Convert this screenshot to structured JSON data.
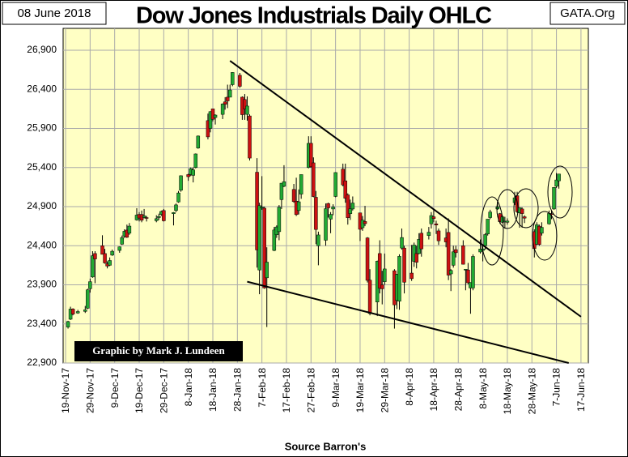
{
  "chart_data": {
    "type": "candlestick",
    "title": "Dow Jones Industrials Daily OHLC",
    "date_label": "08 June 2018",
    "site_label": "GATA.Org",
    "source": "Source Barron's",
    "annotation": "Graphic by Mark J. Lundeen",
    "up_color": "#22aa33",
    "down_color": "#cc1111",
    "background": "#ffffc4",
    "grid": true,
    "xlim": [
      "2017-11-18",
      "2018-06-20"
    ],
    "ylim": [
      22900,
      27180
    ],
    "yticks": [
      {
        "value": 22900,
        "label": "22,900"
      },
      {
        "value": 23400,
        "label": "23,400"
      },
      {
        "value": 23900,
        "label": "23,900"
      },
      {
        "value": 24400,
        "label": "24,400"
      },
      {
        "value": 24900,
        "label": "24,900"
      },
      {
        "value": 25400,
        "label": "25,400"
      },
      {
        "value": 25900,
        "label": "25,900"
      },
      {
        "value": 26400,
        "label": "26,400"
      },
      {
        "value": 26900,
        "label": "26,900"
      }
    ],
    "xticks": [
      {
        "value": "2017-11-19",
        "label": "19-Nov-17"
      },
      {
        "value": "2017-11-29",
        "label": "29-Nov-17"
      },
      {
        "value": "2017-12-09",
        "label": "9-Dec-17"
      },
      {
        "value": "2017-12-19",
        "label": "19-Dec-17"
      },
      {
        "value": "2017-12-29",
        "label": "29-Dec-17"
      },
      {
        "value": "2018-01-08",
        "label": "8-Jan-18"
      },
      {
        "value": "2018-01-18",
        "label": "18-Jan-18"
      },
      {
        "value": "2018-01-28",
        "label": "28-Jan-18"
      },
      {
        "value": "2018-02-07",
        "label": "7-Feb-18"
      },
      {
        "value": "2018-02-17",
        "label": "17-Feb-18"
      },
      {
        "value": "2018-02-27",
        "label": "27-Feb-18"
      },
      {
        "value": "2018-03-09",
        "label": "9-Mar-18"
      },
      {
        "value": "2018-03-19",
        "label": "19-Mar-18"
      },
      {
        "value": "2018-03-29",
        "label": "29-Mar-18"
      },
      {
        "value": "2018-04-08",
        "label": "8-Apr-18"
      },
      {
        "value": "2018-04-18",
        "label": "18-Apr-18"
      },
      {
        "value": "2018-04-28",
        "label": "28-Apr-18"
      },
      {
        "value": "2018-05-08",
        "label": "8-May-18"
      },
      {
        "value": "2018-05-18",
        "label": "18-May-18"
      },
      {
        "value": "2018-05-28",
        "label": "28-May-18"
      },
      {
        "value": "2018-06-07",
        "label": "7-Jun-18"
      },
      {
        "value": "2018-06-17",
        "label": "17-Jun-18"
      }
    ],
    "x": [
      "2017-11-20",
      "2017-11-21",
      "2017-11-22",
      "2017-11-24",
      "2017-11-27",
      "2017-11-28",
      "2017-11-29",
      "2017-11-30",
      "2017-12-01",
      "2017-12-04",
      "2017-12-05",
      "2017-12-06",
      "2017-12-07",
      "2017-12-08",
      "2017-12-11",
      "2017-12-12",
      "2017-12-13",
      "2017-12-14",
      "2017-12-15",
      "2017-12-18",
      "2017-12-19",
      "2017-12-20",
      "2017-12-21",
      "2017-12-22",
      "2017-12-26",
      "2017-12-27",
      "2017-12-28",
      "2017-12-29",
      "2018-01-02",
      "2018-01-03",
      "2018-01-04",
      "2018-01-05",
      "2018-01-08",
      "2018-01-09",
      "2018-01-10",
      "2018-01-11",
      "2018-01-12",
      "2018-01-16",
      "2018-01-17",
      "2018-01-18",
      "2018-01-19",
      "2018-01-22",
      "2018-01-23",
      "2018-01-24",
      "2018-01-25",
      "2018-01-26",
      "2018-01-29",
      "2018-01-30",
      "2018-01-31",
      "2018-02-01",
      "2018-02-02",
      "2018-02-05",
      "2018-02-06",
      "2018-02-07",
      "2018-02-08",
      "2018-02-09",
      "2018-02-12",
      "2018-02-13",
      "2018-02-14",
      "2018-02-15",
      "2018-02-16",
      "2018-02-20",
      "2018-02-21",
      "2018-02-22",
      "2018-02-23",
      "2018-02-26",
      "2018-02-27",
      "2018-02-28",
      "2018-03-01",
      "2018-03-02",
      "2018-03-05",
      "2018-03-06",
      "2018-03-07",
      "2018-03-08",
      "2018-03-09",
      "2018-03-12",
      "2018-03-13",
      "2018-03-14",
      "2018-03-15",
      "2018-03-16",
      "2018-03-19",
      "2018-03-20",
      "2018-03-21",
      "2018-03-22",
      "2018-03-23",
      "2018-03-26",
      "2018-03-27",
      "2018-03-28",
      "2018-03-29",
      "2018-04-02",
      "2018-04-03",
      "2018-04-04",
      "2018-04-05",
      "2018-04-06",
      "2018-04-09",
      "2018-04-10",
      "2018-04-11",
      "2018-04-12",
      "2018-04-13",
      "2018-04-16",
      "2018-04-17",
      "2018-04-18",
      "2018-04-19",
      "2018-04-20",
      "2018-04-23",
      "2018-04-24",
      "2018-04-25",
      "2018-04-26",
      "2018-04-27",
      "2018-04-30",
      "2018-05-01",
      "2018-05-02",
      "2018-05-03",
      "2018-05-04",
      "2018-05-07",
      "2018-05-08",
      "2018-05-09",
      "2018-05-10",
      "2018-05-11",
      "2018-05-14",
      "2018-05-15",
      "2018-05-16",
      "2018-05-17",
      "2018-05-18",
      "2018-05-21",
      "2018-05-22",
      "2018-05-23",
      "2018-05-24",
      "2018-05-25",
      "2018-05-29",
      "2018-05-30",
      "2018-05-31",
      "2018-06-01",
      "2018-06-04",
      "2018-06-05",
      "2018-06-06",
      "2018-06-07",
      "2018-06-08"
    ],
    "ohlc": [
      [
        23360,
        23440,
        23340,
        23430
      ],
      [
        23460,
        23620,
        23450,
        23590
      ],
      [
        23590,
        23600,
        23510,
        23526
      ],
      [
        23540,
        23580,
        23530,
        23558
      ],
      [
        23560,
        23630,
        23540,
        23580
      ],
      [
        23600,
        23850,
        23590,
        23836
      ],
      [
        23850,
        23980,
        23800,
        23940
      ],
      [
        24000,
        24330,
        23990,
        24272
      ],
      [
        24300,
        24330,
        23920,
        24231
      ],
      [
        24400,
        24534,
        24290,
        24290
      ],
      [
        24300,
        24360,
        24170,
        24180
      ],
      [
        24170,
        24200,
        24110,
        24140
      ],
      [
        24150,
        24250,
        24140,
        24211
      ],
      [
        24280,
        24350,
        24270,
        24329
      ],
      [
        24340,
        24390,
        24310,
        24386
      ],
      [
        24420,
        24530,
        24410,
        24504
      ],
      [
        24520,
        24610,
        24500,
        24585
      ],
      [
        24600,
        24670,
        24500,
        24508
      ],
      [
        24560,
        24690,
        24540,
        24651
      ],
      [
        24730,
        24880,
        24720,
        24792
      ],
      [
        24800,
        24830,
        24710,
        24754
      ],
      [
        24800,
        24850,
        24700,
        24726
      ],
      [
        24760,
        24870,
        24750,
        24782
      ],
      [
        24760,
        24780,
        24710,
        24754
      ],
      [
        24720,
        24790,
        24700,
        24746
      ],
      [
        24760,
        24810,
        24730,
        24774
      ],
      [
        24800,
        24850,
        24780,
        24838
      ],
      [
        24850,
        24870,
        24710,
        24719
      ],
      [
        24810,
        24830,
        24660,
        24824
      ],
      [
        24850,
        24940,
        24830,
        24922
      ],
      [
        24960,
        25100,
        24950,
        25075
      ],
      [
        25110,
        25300,
        25090,
        25295
      ],
      [
        25310,
        25320,
        25230,
        25283
      ],
      [
        25310,
        25400,
        25290,
        25386
      ],
      [
        25300,
        25400,
        25210,
        25369
      ],
      [
        25400,
        25580,
        25390,
        25574
      ],
      [
        25650,
        25810,
        25640,
        25803
      ],
      [
        26000,
        26090,
        25760,
        25792
      ],
      [
        25900,
        26120,
        25850,
        26115
      ],
      [
        26150,
        26150,
        25990,
        26017
      ],
      [
        26040,
        26080,
        25950,
        26071
      ],
      [
        26080,
        26220,
        26020,
        26214
      ],
      [
        26240,
        26300,
        26140,
        26210
      ],
      [
        26300,
        26460,
        26160,
        26252
      ],
      [
        26300,
        26460,
        26300,
        26392
      ],
      [
        26460,
        26620,
        26440,
        26616
      ],
      [
        26580,
        26610,
        26420,
        26439
      ],
      [
        26300,
        26310,
        26010,
        26076
      ],
      [
        26270,
        26340,
        26010,
        26149
      ],
      [
        26080,
        26310,
        26000,
        26186
      ],
      [
        26060,
        26080,
        25490,
        25521
      ],
      [
        25340,
        25520,
        24120,
        24346
      ],
      [
        24090,
        24950,
        23780,
        24912
      ],
      [
        24890,
        25290,
        24860,
        24893
      ],
      [
        24880,
        24900,
        23850,
        23860
      ],
      [
        23990,
        24380,
        23360,
        24190
      ],
      [
        24340,
        24640,
        24330,
        24601
      ],
      [
        24540,
        24660,
        24500,
        24640
      ],
      [
        24580,
        24920,
        24470,
        24893
      ],
      [
        24990,
        25200,
        24870,
        25200
      ],
      [
        25160,
        25430,
        25150,
        25219
      ],
      [
        25120,
        25190,
        24950,
        24964
      ],
      [
        24970,
        25270,
        24780,
        24798
      ],
      [
        24850,
        25120,
        24800,
        24962
      ],
      [
        25060,
        25310,
        25000,
        25310
      ],
      [
        25400,
        25800,
        25390,
        25709
      ],
      [
        25710,
        25800,
        25400,
        25410
      ],
      [
        25460,
        25530,
        25020,
        25029
      ],
      [
        25020,
        25100,
        24420,
        24608
      ],
      [
        24400,
        24580,
        24150,
        24538
      ],
      [
        24470,
        24940,
        24400,
        24874
      ],
      [
        24940,
        24950,
        24760,
        24884
      ],
      [
        24740,
        24830,
        24560,
        24801
      ],
      [
        24870,
        24930,
        24790,
        24895
      ],
      [
        25030,
        25340,
        25020,
        25336
      ],
      [
        25380,
        25450,
        25160,
        25178
      ],
      [
        25230,
        25450,
        24950,
        25007
      ],
      [
        25050,
        25070,
        24670,
        24758
      ],
      [
        24810,
        24990,
        24730,
        24873
      ],
      [
        24870,
        25030,
        24850,
        24946
      ],
      [
        24820,
        24820,
        24460,
        24610
      ],
      [
        24630,
        24780,
        24590,
        24727
      ],
      [
        24710,
        24910,
        24650,
        24682
      ],
      [
        24500,
        24510,
        23930,
        23957
      ],
      [
        23960,
        24100,
        23510,
        23533
      ],
      [
        23680,
        24210,
        23500,
        24202
      ],
      [
        24300,
        24470,
        23790,
        23857
      ],
      [
        23900,
        24080,
        23650,
        23849
      ],
      [
        23940,
        24300,
        23900,
        24103
      ],
      [
        24080,
        24100,
        23340,
        23644
      ],
      [
        23700,
        24040,
        23590,
        24033
      ],
      [
        23690,
        24290,
        23580,
        24264
      ],
      [
        24370,
        24620,
        24350,
        24505
      ],
      [
        24370,
        24400,
        23790,
        23933
      ],
      [
        24050,
        24410,
        23950,
        23979
      ],
      [
        24200,
        24440,
        24130,
        24408
      ],
      [
        24300,
        24400,
        24110,
        24189
      ],
      [
        24300,
        24560,
        24290,
        24483
      ],
      [
        24560,
        24620,
        24260,
        24360
      ],
      [
        24530,
        24640,
        24480,
        24573
      ],
      [
        24680,
        24830,
        24620,
        24786
      ],
      [
        24770,
        24860,
        24700,
        24748
      ],
      [
        24680,
        24720,
        24550,
        24665
      ],
      [
        24590,
        24620,
        24410,
        24463
      ],
      [
        24500,
        24620,
        24380,
        24448
      ],
      [
        24570,
        24750,
        23960,
        24024
      ],
      [
        24040,
        24100,
        23820,
        24084
      ],
      [
        24150,
        24400,
        24120,
        24322
      ],
      [
        24350,
        24400,
        24250,
        24311
      ],
      [
        24400,
        24470,
        24160,
        24163
      ],
      [
        24090,
        24100,
        23830,
        24099
      ],
      [
        24090,
        24180,
        23910,
        23925
      ],
      [
        23860,
        23930,
        23530,
        23930
      ],
      [
        23860,
        24290,
        23830,
        24263
      ],
      [
        24320,
        24480,
        24300,
        24357
      ],
      [
        24340,
        24390,
        24200,
        24360
      ],
      [
        24400,
        24560,
        24350,
        24543
      ],
      [
        24550,
        24740,
        24530,
        24740
      ],
      [
        24760,
        24860,
        24740,
        24831
      ],
      [
        24870,
        24970,
        24860,
        24899
      ],
      [
        24810,
        24820,
        24680,
        24706
      ],
      [
        24700,
        24790,
        24690,
        24769
      ],
      [
        24710,
        24770,
        24620,
        24714
      ],
      [
        24700,
        24750,
        24670,
        24715
      ],
      [
        24950,
        25090,
        24920,
        25013
      ],
      [
        25040,
        25090,
        24820,
        24834
      ],
      [
        24820,
        24890,
        24630,
        24886
      ],
      [
        24870,
        24890,
        24630,
        24811
      ],
      [
        24770,
        24790,
        24690,
        24753
      ],
      [
        24580,
        24610,
        24250,
        24362
      ],
      [
        24420,
        24700,
        24410,
        24667
      ],
      [
        24650,
        24670,
        24400,
        24416
      ],
      [
        24560,
        24700,
        24530,
        24635
      ],
      [
        24680,
        24850,
        24670,
        24813
      ],
      [
        24810,
        24850,
        24740,
        24799
      ],
      [
        24870,
        25150,
        24860,
        25146
      ],
      [
        25160,
        25330,
        25140,
        25241
      ],
      [
        25230,
        25320,
        25130,
        25317
      ]
    ],
    "trendlines": [
      {
        "x": [
          "2018-01-25",
          "2018-06-17"
        ],
        "y": [
          26765,
          23492
        ]
      },
      {
        "x": [
          "2018-02-01",
          "2018-06-12"
        ],
        "y": [
          23940,
          22900
        ]
      }
    ]
  }
}
